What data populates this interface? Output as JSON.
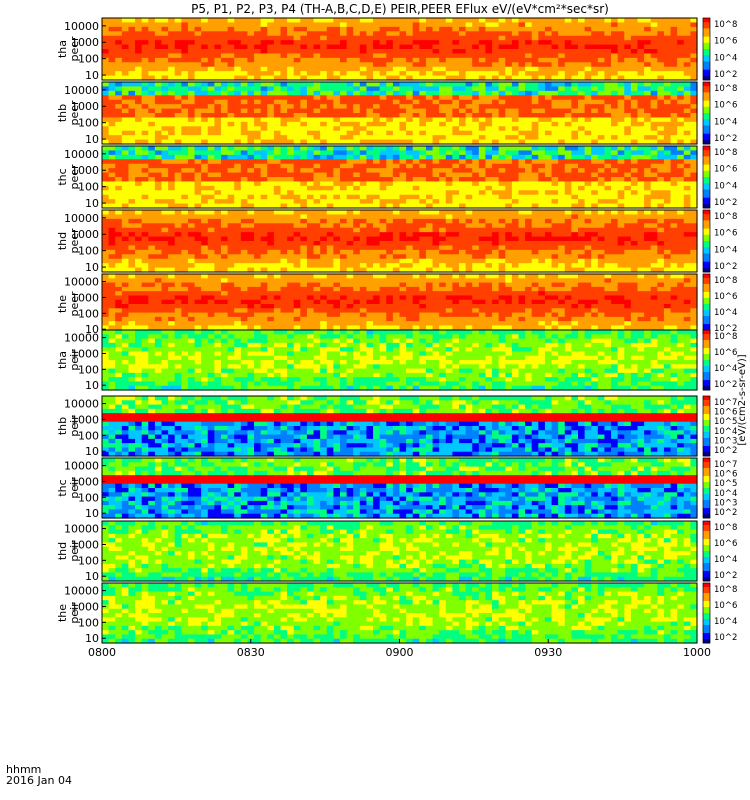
{
  "title": "P5, P1, P2, P3, P4 (TH-A,B,C,D,E) PEIR,PEER EFlux eV/(eV*cm²*sec*sr)",
  "footer": {
    "line1": "hhmm",
    "line2": "2016 Jan 04"
  },
  "colorbar_label": "[eV/(cm2-s-sr-eV)]",
  "chart_data": {
    "type": "heatmap",
    "x": {
      "ticks": [
        "0800",
        "0830",
        "0900",
        "0930",
        "1000"
      ],
      "range": [
        "08:00",
        "10:00"
      ]
    },
    "y": {
      "scale": "log",
      "range": [
        5,
        30000
      ],
      "ticks": [
        "10",
        "100",
        "1000",
        "10000"
      ]
    },
    "colormap": [
      "#000080",
      "#0000ff",
      "#0080ff",
      "#00c8ff",
      "#00ff80",
      "#80ff00",
      "#ffff00",
      "#ffa000",
      "#ff4000",
      "#ff0000"
    ],
    "panels": [
      {
        "probe": "tha",
        "species": "peer",
        "label1": "tha",
        "label2": "peer",
        "cbar_ticks": [
          "10^8",
          "10^6",
          "10^4",
          "10^2"
        ],
        "cmin": 2,
        "cmax": 8
      },
      {
        "probe": "thb",
        "species": "peer",
        "label1": "thb",
        "label2": "peer",
        "cbar_ticks": [
          "10^8",
          "10^6",
          "10^4",
          "10^2"
        ],
        "cmin": 2,
        "cmax": 8
      },
      {
        "probe": "thc",
        "species": "peer",
        "label1": "thc",
        "label2": "peer",
        "cbar_ticks": [
          "10^8",
          "10^6",
          "10^4",
          "10^2"
        ],
        "cmin": 2,
        "cmax": 8
      },
      {
        "probe": "thd",
        "species": "peer",
        "label1": "thd",
        "label2": "peer",
        "cbar_ticks": [
          "10^8",
          "10^6",
          "10^4",
          "10^2"
        ],
        "cmin": 2,
        "cmax": 8
      },
      {
        "probe": "the",
        "species": "peer",
        "label1": "the",
        "label2": "peer",
        "cbar_ticks": [
          "10^8",
          "10^6",
          "10^4",
          "10^2"
        ],
        "cmin": 2,
        "cmax": 8
      },
      {
        "probe": "tha",
        "species": "peir",
        "label1": "tha",
        "label2": "peir",
        "cbar_ticks": [
          "10^8",
          "10^6",
          "10^4",
          "10^2"
        ],
        "cmin": 2,
        "cmax": 8
      },
      {
        "probe": "thb",
        "species": "peir",
        "label1": "thb",
        "label2": "peir",
        "cbar_ticks": [
          "10^7",
          "10^6",
          "10^5",
          "10^4",
          "10^3",
          "10^2"
        ],
        "cmin": 2,
        "cmax": 7
      },
      {
        "probe": "thc",
        "species": "peir",
        "label1": "thc",
        "label2": "peir",
        "cbar_ticks": [
          "10^7",
          "10^6",
          "10^5",
          "10^4",
          "10^3",
          "10^2"
        ],
        "cmin": 2,
        "cmax": 7
      },
      {
        "probe": "thd",
        "species": "peir",
        "label1": "thd",
        "label2": "peir",
        "cbar_ticks": [
          "10^8",
          "10^6",
          "10^4",
          "10^2"
        ],
        "cmin": 2,
        "cmax": 8
      },
      {
        "probe": "the",
        "species": "peir",
        "label1": "the",
        "label2": "peir",
        "cbar_ticks": [
          "10^8",
          "10^6",
          "10^4",
          "10^2"
        ],
        "cmin": 2,
        "cmax": 8
      }
    ]
  }
}
